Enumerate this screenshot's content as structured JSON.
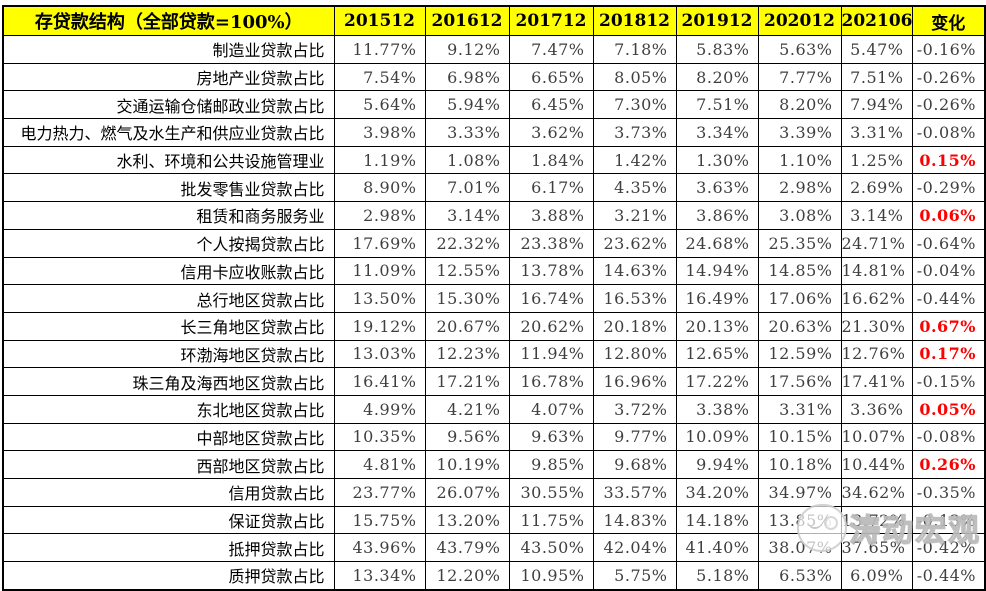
{
  "table": {
    "title": "存贷款结构（全部贷款=100%）",
    "header": [
      "存贷款结构（全部贷款=100%）",
      "201512",
      "201612",
      "201712",
      "201812",
      "201912",
      "202012",
      "202106",
      "变化"
    ],
    "accent_colors": {
      "header_background": "#FFFF00",
      "positive_change": "#FF0000",
      "value_text": "#3F3F3F",
      "border": "#000000"
    },
    "rows": [
      {
        "label": "制造业贷款占比",
        "values": [
          "11.77%",
          "9.12%",
          "7.47%",
          "7.18%",
          "5.83%",
          "5.63%",
          "5.47%"
        ],
        "change": "-0.16%",
        "change_positive": false
      },
      {
        "label": "房地产业贷款占比",
        "values": [
          "7.54%",
          "6.98%",
          "6.65%",
          "8.05%",
          "8.20%",
          "7.77%",
          "7.51%"
        ],
        "change": "-0.26%",
        "change_positive": false
      },
      {
        "label": "交通运输仓储邮政业贷款占比",
        "values": [
          "5.64%",
          "5.94%",
          "6.45%",
          "7.30%",
          "7.51%",
          "8.20%",
          "7.94%"
        ],
        "change": "-0.26%",
        "change_positive": false
      },
      {
        "label": "电力热力、燃气及水生产和供应业贷款占比",
        "values": [
          "3.98%",
          "3.33%",
          "3.62%",
          "3.73%",
          "3.34%",
          "3.39%",
          "3.31%"
        ],
        "change": "-0.08%",
        "change_positive": false
      },
      {
        "label": "水利、环境和公共设施管理业",
        "values": [
          "1.19%",
          "1.08%",
          "1.84%",
          "1.42%",
          "1.30%",
          "1.10%",
          "1.25%"
        ],
        "change": "0.15%",
        "change_positive": true
      },
      {
        "label": "批发零售业贷款占比",
        "values": [
          "8.90%",
          "7.01%",
          "6.17%",
          "4.35%",
          "3.63%",
          "2.98%",
          "2.69%"
        ],
        "change": "-0.29%",
        "change_positive": false
      },
      {
        "label": "租赁和商务服务业",
        "values": [
          "2.98%",
          "3.14%",
          "3.88%",
          "3.21%",
          "3.86%",
          "3.08%",
          "3.14%"
        ],
        "change": "0.06%",
        "change_positive": true
      },
      {
        "label": "个人按揭贷款占比",
        "values": [
          "17.69%",
          "22.32%",
          "23.38%",
          "23.62%",
          "24.68%",
          "25.35%",
          "24.71%"
        ],
        "change": "-0.64%",
        "change_positive": false
      },
      {
        "label": "信用卡应收账款占比",
        "values": [
          "11.09%",
          "12.55%",
          "13.78%",
          "14.63%",
          "14.94%",
          "14.85%",
          "14.81%"
        ],
        "change": "-0.04%",
        "change_positive": false
      },
      {
        "label": "总行地区贷款占比",
        "values": [
          "13.50%",
          "15.30%",
          "16.74%",
          "16.53%",
          "16.49%",
          "17.06%",
          "16.62%"
        ],
        "change": "-0.44%",
        "change_positive": false
      },
      {
        "label": "长三角地区贷款占比",
        "values": [
          "19.12%",
          "20.67%",
          "20.62%",
          "20.18%",
          "20.13%",
          "20.63%",
          "21.30%"
        ],
        "change": "0.67%",
        "change_positive": true
      },
      {
        "label": "环渤海地区贷款占比",
        "values": [
          "13.03%",
          "12.23%",
          "11.94%",
          "12.80%",
          "12.65%",
          "12.59%",
          "12.76%"
        ],
        "change": "0.17%",
        "change_positive": true
      },
      {
        "label": "珠三角及海西地区贷款占比",
        "values": [
          "16.41%",
          "17.21%",
          "16.78%",
          "16.96%",
          "17.22%",
          "17.56%",
          "17.41%"
        ],
        "change": "-0.15%",
        "change_positive": false
      },
      {
        "label": "东北地区贷款占比",
        "values": [
          "4.99%",
          "4.21%",
          "4.07%",
          "3.72%",
          "3.38%",
          "3.31%",
          "3.36%"
        ],
        "change": "0.05%",
        "change_positive": true
      },
      {
        "label": "中部地区贷款占比",
        "values": [
          "10.35%",
          "9.56%",
          "9.63%",
          "9.77%",
          "10.09%",
          "10.15%",
          "10.07%"
        ],
        "change": "-0.08%",
        "change_positive": false
      },
      {
        "label": "西部地区贷款占比",
        "values": [
          "4.81%",
          "10.19%",
          "9.85%",
          "9.68%",
          "9.94%",
          "10.18%",
          "10.44%"
        ],
        "change": "0.26%",
        "change_positive": true
      },
      {
        "label": "信用贷款占比",
        "values": [
          "23.77%",
          "26.07%",
          "30.55%",
          "33.57%",
          "34.20%",
          "34.97%",
          "34.62%"
        ],
        "change": "-0.35%",
        "change_positive": false
      },
      {
        "label": "保证贷款占比",
        "values": [
          "15.75%",
          "13.20%",
          "11.75%",
          "14.83%",
          "14.18%",
          "13.85%",
          "13.72%"
        ],
        "change": "-0.13%",
        "change_positive": false
      },
      {
        "label": "抵押贷款占比",
        "values": [
          "43.96%",
          "43.79%",
          "43.50%",
          "42.04%",
          "41.40%",
          "38.07%",
          "37.65%"
        ],
        "change": "-0.42%",
        "change_positive": false
      },
      {
        "label": "质押贷款占比",
        "values": [
          "13.34%",
          "12.20%",
          "10.95%",
          "5.75%",
          "5.18%",
          "6.53%",
          "6.09%"
        ],
        "change": "-0.44%",
        "change_positive": false
      }
    ]
  },
  "watermark": {
    "text": "涛动宏观",
    "logo": "chat-bubble-logo"
  }
}
